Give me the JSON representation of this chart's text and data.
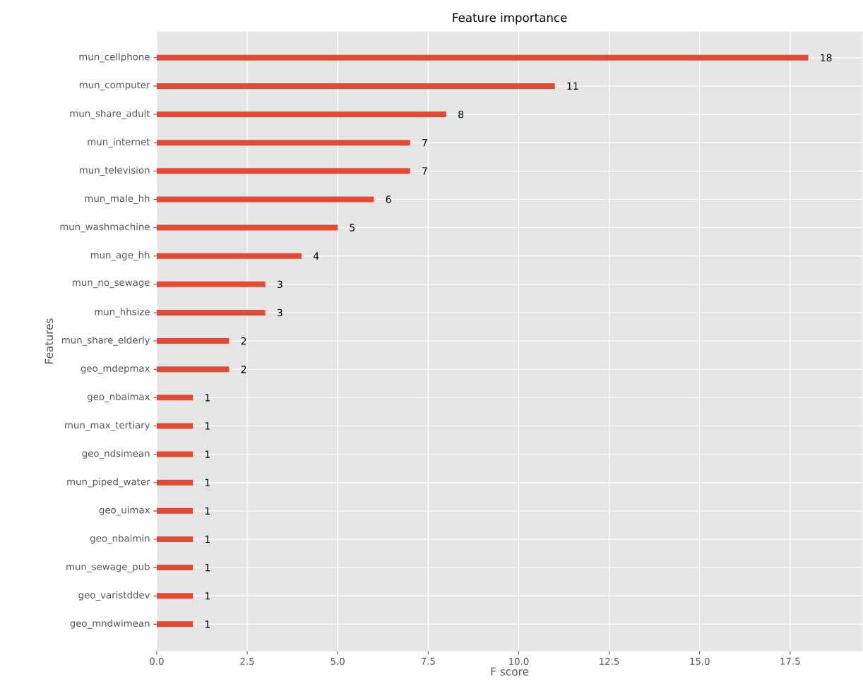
{
  "chart_data": {
    "type": "bar",
    "orientation": "horizontal",
    "title": "Feature importance",
    "xlabel": "F score",
    "ylabel": "Features",
    "categories": [
      "mun_cellphone",
      "mun_computer",
      "mun_share_adult",
      "mun_internet",
      "mun_television",
      "mun_male_hh",
      "mun_washmachine",
      "mun_age_hh",
      "mun_no_sewage",
      "mun_hhsize",
      "mun_share_elderly",
      "geo_mdepmax",
      "geo_nbaimax",
      "mun_max_tertiary",
      "geo_ndsimean",
      "mun_piped_water",
      "geo_uimax",
      "geo_nbaimin",
      "mun_sewage_pub",
      "geo_varistddev",
      "geo_mndwimean"
    ],
    "values": [
      18,
      11,
      8,
      7,
      7,
      6,
      5,
      4,
      3,
      3,
      2,
      2,
      1,
      1,
      1,
      1,
      1,
      1,
      1,
      1,
      1
    ],
    "data_labels": true,
    "color": "#e24a33",
    "grid": true,
    "xlim": [
      0,
      19.5
    ],
    "xticks": [
      {
        "value": 0,
        "label": "0.0"
      },
      2.5,
      {
        "value": 5,
        "label": "5.0"
      },
      7.5,
      {
        "value": 10,
        "label": "10.0"
      },
      12.5,
      {
        "value": 15,
        "label": "15.0"
      },
      17.5
    ]
  }
}
